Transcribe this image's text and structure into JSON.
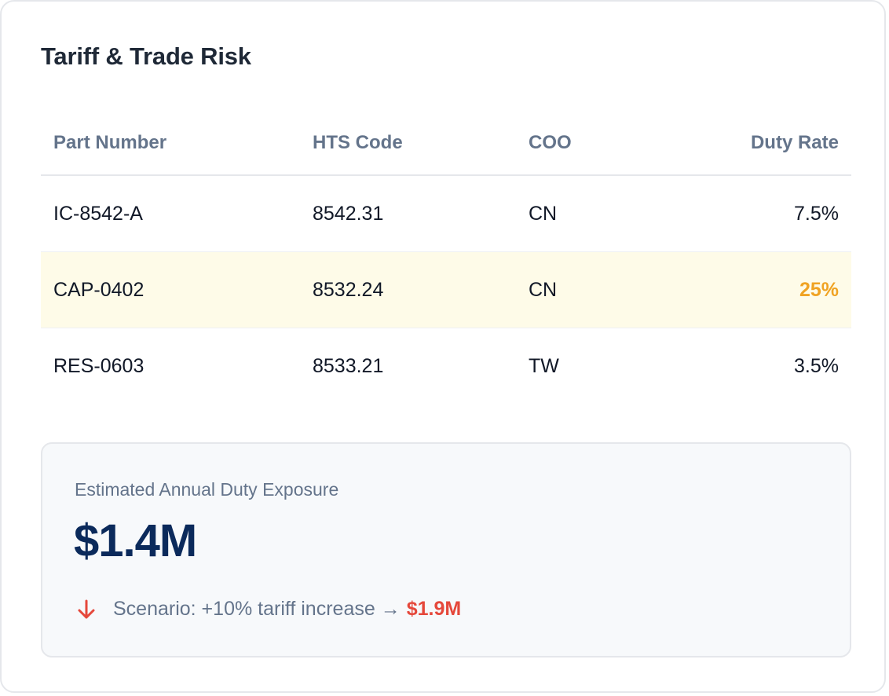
{
  "title": "Tariff & Trade Risk",
  "table": {
    "headers": [
      "Part Number",
      "HTS Code",
      "COO",
      "Duty Rate"
    ],
    "rows": [
      {
        "part": "IC-8542-A",
        "hts": "8542.31",
        "coo": "CN",
        "duty": "7.5%"
      },
      {
        "part": "CAP-0402",
        "hts": "8532.24",
        "coo": "CN",
        "duty": "25%",
        "highlighted": true
      },
      {
        "part": "RES-0603",
        "hts": "8533.21",
        "coo": "TW",
        "duty": "3.5%"
      }
    ]
  },
  "exposure": {
    "label": "Estimated Annual Duty Exposure",
    "value": "$1.4M",
    "scenario_text": "Scenario: +10% tariff increase →",
    "scenario_value": "$1.9M",
    "icon": "arrow-down-icon"
  },
  "colors": {
    "highlight_row": "#fefbe8",
    "warning": "#f0a323",
    "danger": "#e5483b",
    "value": "#0b2a5b"
  }
}
